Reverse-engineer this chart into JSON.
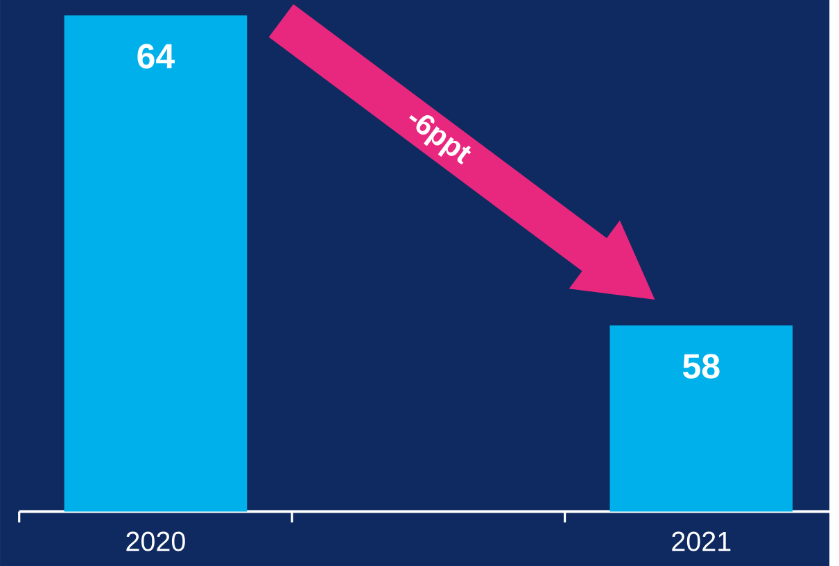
{
  "chart_data": {
    "type": "bar",
    "categories": [
      "2020",
      null,
      "2021"
    ],
    "values": [
      64,
      null,
      58
    ],
    "color": "#00b0ea",
    "ylim": [
      54.4,
      64.3
    ],
    "data_labels": true,
    "annotations": [
      "-6ppt"
    ]
  }
}
